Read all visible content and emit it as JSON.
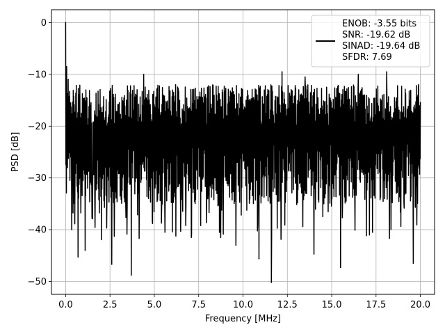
{
  "chart_data": {
    "type": "line",
    "title": "",
    "xlabel": "Frequency [MHz]",
    "ylabel": "PSD [dB]",
    "xlim": [
      -0.8,
      20.8
    ],
    "ylim": [
      -52.5,
      2.5
    ],
    "xticks": [
      0.0,
      2.5,
      5.0,
      7.5,
      10.0,
      12.5,
      15.0,
      17.5,
      20.0
    ],
    "xtick_labels": [
      "0.0",
      "2.5",
      "5.0",
      "7.5",
      "10.0",
      "12.5",
      "15.0",
      "17.5",
      "20.0"
    ],
    "yticks": [
      0,
      -10,
      -20,
      -30,
      -40,
      -50
    ],
    "ytick_labels": [
      "0",
      "−10",
      "−20",
      "−30",
      "−40",
      "−50"
    ],
    "grid": true,
    "legend_position": "top-right",
    "series": [
      {
        "name": "ENOB: -3.55 bits\nSNR: -19.62 dB\nSINAD: -19.64 dB\nSFDR: 7.69",
        "color": "#000000",
        "x_range": [
          0.0,
          20.0
        ],
        "noise_floor_db_approx": -20,
        "fluctuation_band_db_approx": [
          -35,
          -12
        ],
        "peaks": [
          {
            "x": 0.0,
            "y": 0.0
          },
          {
            "x": 0.05,
            "y": -8.5
          },
          {
            "x": 0.15,
            "y": -11.0
          },
          {
            "x": 0.35,
            "y": -40.0
          },
          {
            "x": 0.7,
            "y": -45.3
          },
          {
            "x": 1.1,
            "y": -44.0
          },
          {
            "x": 2.6,
            "y": -46.7
          },
          {
            "x": 3.7,
            "y": -48.8
          },
          {
            "x": 4.4,
            "y": -10.0
          },
          {
            "x": 5.6,
            "y": -40.5
          },
          {
            "x": 6.2,
            "y": -12.0
          },
          {
            "x": 9.6,
            "y": -43.0
          },
          {
            "x": 10.9,
            "y": -45.6
          },
          {
            "x": 11.6,
            "y": -50.2
          },
          {
            "x": 12.2,
            "y": -9.5
          },
          {
            "x": 13.5,
            "y": -10.5
          },
          {
            "x": 14.0,
            "y": -44.7
          },
          {
            "x": 15.5,
            "y": -47.3
          },
          {
            "x": 16.5,
            "y": -10.0
          },
          {
            "x": 17.3,
            "y": -40.5
          },
          {
            "x": 18.1,
            "y": -9.5
          },
          {
            "x": 19.6,
            "y": -46.5
          },
          {
            "x": 19.9,
            "y": -12.0
          }
        ]
      }
    ]
  }
}
